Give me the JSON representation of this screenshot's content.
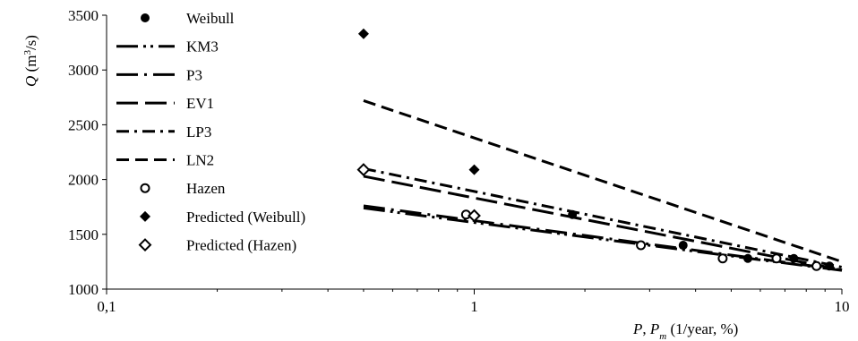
{
  "chart_data": {
    "type": "scatter",
    "title": "",
    "xlabel": {
      "p": "P",
      "sep": ", ",
      "pm": "P",
      "pm_sub": "m",
      "unit": " (1/year, %)"
    },
    "ylabel": {
      "q": "Q",
      "unit_pre": " (m",
      "unit_sup": "3",
      "unit_post": "/s)"
    },
    "x_scale": "log",
    "xlim": [
      0.1,
      10
    ],
    "ylim": [
      1000,
      3500
    ],
    "x_ticks": [
      0.1,
      1,
      10
    ],
    "x_tick_labels": [
      "0,1",
      "1",
      "10"
    ],
    "y_ticks": [
      1000,
      1500,
      2000,
      2500,
      3000,
      3500
    ],
    "y_tick_labels": [
      "1000",
      "1500",
      "2000",
      "2500",
      "3000",
      "3500"
    ],
    "grid": false,
    "legend_position": "left",
    "series": [
      {
        "name": "Weibull",
        "kind": "marker",
        "marker": "filled-circle",
        "x": [
          1.85,
          3.7,
          5.55,
          7.4,
          9.25
        ],
        "y": [
          1680,
          1400,
          1280,
          1280,
          1210
        ]
      },
      {
        "name": "KM3",
        "kind": "line",
        "dash": "longdash-dot-dot",
        "x": [
          0.5,
          10
        ],
        "y": [
          1740,
          1170
        ]
      },
      {
        "name": "P3",
        "kind": "line",
        "dash": "longdash-dot",
        "x": [
          0.5,
          10
        ],
        "y": [
          1760,
          1175
        ]
      },
      {
        "name": "EV1",
        "kind": "line",
        "dash": "longdash",
        "x": [
          0.5,
          10
        ],
        "y": [
          2030,
          1175
        ]
      },
      {
        "name": "LP3",
        "kind": "line",
        "dash": "dash-dot",
        "x": [
          0.5,
          10
        ],
        "y": [
          2100,
          1200
        ]
      },
      {
        "name": "LN2",
        "kind": "line",
        "dash": "dash",
        "x": [
          0.5,
          10
        ],
        "y": [
          2720,
          1250
        ]
      },
      {
        "name": "Hazen",
        "kind": "marker",
        "marker": "open-circle",
        "x": [
          0.95,
          2.84,
          4.74,
          6.64,
          8.53
        ],
        "y": [
          1680,
          1400,
          1280,
          1280,
          1210
        ]
      },
      {
        "name": "Predicted (Weibull)",
        "kind": "marker",
        "marker": "filled-diamond",
        "x": [
          0.5,
          1.0
        ],
        "y": [
          3330,
          2090
        ]
      },
      {
        "name": "Predicted (Hazen)",
        "kind": "marker",
        "marker": "open-diamond",
        "x": [
          0.5,
          1.0
        ],
        "y": [
          2090,
          1670
        ]
      }
    ]
  }
}
